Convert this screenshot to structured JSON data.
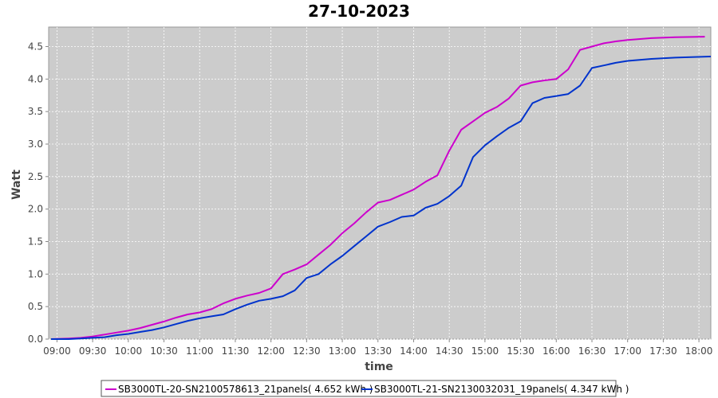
{
  "chart_data": {
    "type": "line",
    "title": "27-10-2023",
    "xlabel": "time",
    "ylabel": "Watt",
    "xlim": [
      "08:53",
      "18:10"
    ],
    "ylim": [
      0.0,
      4.8
    ],
    "x_ticks": [
      "09:00",
      "09:30",
      "10:00",
      "10:30",
      "11:00",
      "11:30",
      "12:00",
      "12:30",
      "13:00",
      "13:30",
      "14:00",
      "14:30",
      "15:00",
      "15:30",
      "16:00",
      "16:30",
      "17:00",
      "17:30",
      "18:00"
    ],
    "y_ticks": [
      "0.0",
      "0.5",
      "1.0",
      "1.5",
      "2.0",
      "2.5",
      "3.0",
      "3.5",
      "4.0",
      "4.5"
    ],
    "grid": true,
    "background": "#cccccc",
    "legend_position": "bottom",
    "series": [
      {
        "name": "SB3000TL-20-SN2100578613_21panels( 4.652 kWh )",
        "color": "#cc00cc",
        "points": [
          [
            "08:55",
            0.0
          ],
          [
            "09:10",
            0.01
          ],
          [
            "09:20",
            0.02
          ],
          [
            "09:30",
            0.04
          ],
          [
            "09:40",
            0.07
          ],
          [
            "09:50",
            0.1
          ],
          [
            "10:00",
            0.13
          ],
          [
            "10:10",
            0.17
          ],
          [
            "10:20",
            0.22
          ],
          [
            "10:30",
            0.27
          ],
          [
            "10:40",
            0.33
          ],
          [
            "10:50",
            0.38
          ],
          [
            "11:00",
            0.41
          ],
          [
            "11:10",
            0.46
          ],
          [
            "11:20",
            0.55
          ],
          [
            "11:30",
            0.62
          ],
          [
            "11:40",
            0.67
          ],
          [
            "11:50",
            0.71
          ],
          [
            "12:00",
            0.78
          ],
          [
            "12:10",
            1.0
          ],
          [
            "12:20",
            1.07
          ],
          [
            "12:30",
            1.15
          ],
          [
            "12:40",
            1.3
          ],
          [
            "12:50",
            1.45
          ],
          [
            "13:00",
            1.63
          ],
          [
            "13:10",
            1.78
          ],
          [
            "13:20",
            1.95
          ],
          [
            "13:30",
            2.1
          ],
          [
            "13:40",
            2.14
          ],
          [
            "13:50",
            2.22
          ],
          [
            "14:00",
            2.3
          ],
          [
            "14:10",
            2.42
          ],
          [
            "14:20",
            2.52
          ],
          [
            "14:30",
            2.9
          ],
          [
            "14:40",
            3.22
          ],
          [
            "14:50",
            3.35
          ],
          [
            "15:00",
            3.48
          ],
          [
            "15:10",
            3.57
          ],
          [
            "15:20",
            3.7
          ],
          [
            "15:30",
            3.9
          ],
          [
            "15:40",
            3.95
          ],
          [
            "15:50",
            3.98
          ],
          [
            "16:00",
            4.0
          ],
          [
            "16:10",
            4.15
          ],
          [
            "16:20",
            4.45
          ],
          [
            "16:30",
            4.5
          ],
          [
            "16:40",
            4.55
          ],
          [
            "16:50",
            4.58
          ],
          [
            "17:00",
            4.6
          ],
          [
            "17:20",
            4.63
          ],
          [
            "17:40",
            4.645
          ],
          [
            "18:05",
            4.652
          ]
        ]
      },
      {
        "name": "SB3000TL-21-SN2130032031_19panels( 4.347 kWh )",
        "color": "#0033cc",
        "points": [
          [
            "08:55",
            0.0
          ],
          [
            "09:10",
            0.0
          ],
          [
            "09:20",
            0.01
          ],
          [
            "09:30",
            0.02
          ],
          [
            "09:40",
            0.03
          ],
          [
            "09:50",
            0.06
          ],
          [
            "10:00",
            0.08
          ],
          [
            "10:10",
            0.11
          ],
          [
            "10:20",
            0.14
          ],
          [
            "10:30",
            0.18
          ],
          [
            "10:40",
            0.23
          ],
          [
            "10:50",
            0.28
          ],
          [
            "11:00",
            0.32
          ],
          [
            "11:10",
            0.35
          ],
          [
            "11:20",
            0.38
          ],
          [
            "11:30",
            0.46
          ],
          [
            "11:40",
            0.53
          ],
          [
            "11:50",
            0.59
          ],
          [
            "12:00",
            0.62
          ],
          [
            "12:10",
            0.66
          ],
          [
            "12:20",
            0.75
          ],
          [
            "12:30",
            0.94
          ],
          [
            "12:40",
            1.0
          ],
          [
            "12:50",
            1.15
          ],
          [
            "13:00",
            1.28
          ],
          [
            "13:10",
            1.43
          ],
          [
            "13:20",
            1.58
          ],
          [
            "13:30",
            1.73
          ],
          [
            "13:40",
            1.8
          ],
          [
            "13:50",
            1.88
          ],
          [
            "14:00",
            1.9
          ],
          [
            "14:10",
            2.02
          ],
          [
            "14:20",
            2.08
          ],
          [
            "14:30",
            2.2
          ],
          [
            "14:40",
            2.36
          ],
          [
            "14:50",
            2.8
          ],
          [
            "15:00",
            2.98
          ],
          [
            "15:10",
            3.12
          ],
          [
            "15:20",
            3.25
          ],
          [
            "15:30",
            3.35
          ],
          [
            "15:40",
            3.63
          ],
          [
            "15:50",
            3.71
          ],
          [
            "16:00",
            3.74
          ],
          [
            "16:10",
            3.77
          ],
          [
            "16:20",
            3.9
          ],
          [
            "16:30",
            4.17
          ],
          [
            "16:40",
            4.21
          ],
          [
            "16:50",
            4.25
          ],
          [
            "17:00",
            4.28
          ],
          [
            "17:20",
            4.31
          ],
          [
            "17:40",
            4.33
          ],
          [
            "18:10",
            4.347
          ]
        ]
      }
    ]
  }
}
